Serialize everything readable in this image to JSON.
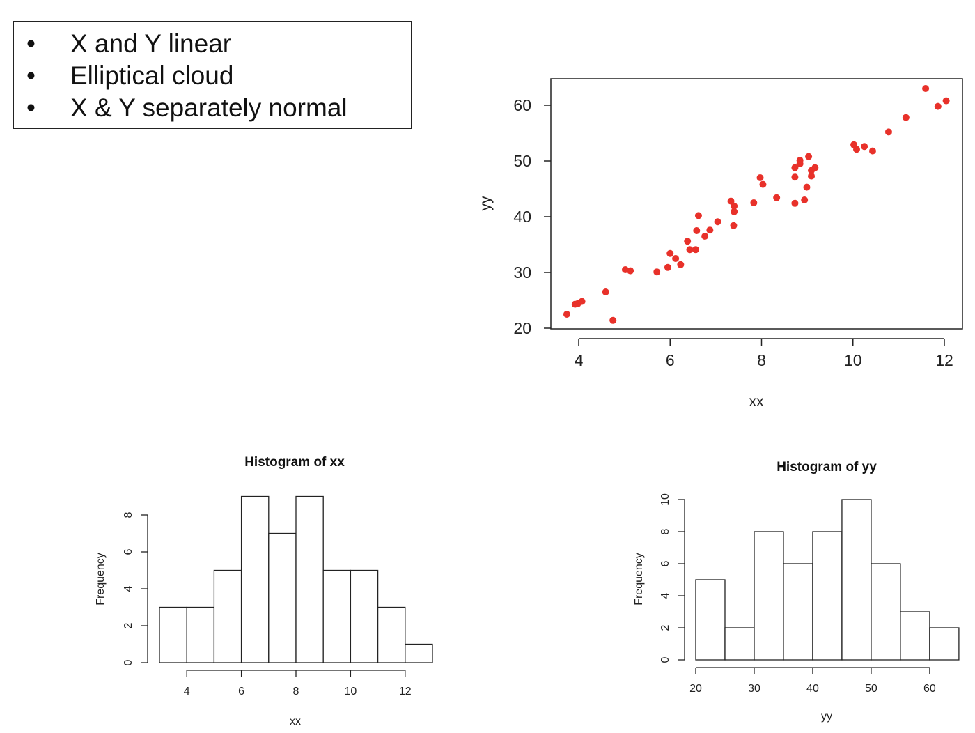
{
  "bullets": [
    "X and Y linear",
    "Elliptical cloud",
    "X & Y separately normal"
  ],
  "bullet_symbol": "•",
  "chart_data": [
    {
      "type": "scatter",
      "title": "",
      "xlabel": "xx",
      "ylabel": "yy",
      "xlim": [
        3.6,
        12.4
      ],
      "ylim": [
        20,
        64
      ],
      "xticks": [
        4,
        6,
        8,
        10,
        12
      ],
      "yticks": [
        20,
        30,
        40,
        50,
        60
      ],
      "point_color": "#e8312a",
      "grid": false,
      "points": [
        [
          3.74,
          22.5
        ],
        [
          3.92,
          24.3
        ],
        [
          3.98,
          24.4
        ],
        [
          4.07,
          24.8
        ],
        [
          4.59,
          26.5
        ],
        [
          4.75,
          21.4
        ],
        [
          5.02,
          30.5
        ],
        [
          5.13,
          30.3
        ],
        [
          5.71,
          30.1
        ],
        [
          5.95,
          30.9
        ],
        [
          6.0,
          33.4
        ],
        [
          6.12,
          32.5
        ],
        [
          6.23,
          31.4
        ],
        [
          6.38,
          35.6
        ],
        [
          6.43,
          34.1
        ],
        [
          6.56,
          34.1
        ],
        [
          6.58,
          37.5
        ],
        [
          6.62,
          40.2
        ],
        [
          6.76,
          36.5
        ],
        [
          6.87,
          37.6
        ],
        [
          7.04,
          39.1
        ],
        [
          7.33,
          42.8
        ],
        [
          7.4,
          41.9
        ],
        [
          7.4,
          40.9
        ],
        [
          7.39,
          38.4
        ],
        [
          7.83,
          42.5
        ],
        [
          7.97,
          47.0
        ],
        [
          8.03,
          45.8
        ],
        [
          8.33,
          43.4
        ],
        [
          8.73,
          48.8
        ],
        [
          8.73,
          47.1
        ],
        [
          8.73,
          42.4
        ],
        [
          8.84,
          50.1
        ],
        [
          8.84,
          49.5
        ],
        [
          8.94,
          43.0
        ],
        [
          8.99,
          45.3
        ],
        [
          9.03,
          50.8
        ],
        [
          9.09,
          47.3
        ],
        [
          9.17,
          48.8
        ],
        [
          9.09,
          48.3
        ],
        [
          10.02,
          52.9
        ],
        [
          10.08,
          52.1
        ],
        [
          10.25,
          52.6
        ],
        [
          10.43,
          51.8
        ],
        [
          10.78,
          55.2
        ],
        [
          11.16,
          57.8
        ],
        [
          11.59,
          63.0
        ],
        [
          11.86,
          59.8
        ],
        [
          12.04,
          60.8
        ]
      ]
    },
    {
      "type": "bar",
      "title": "Histogram of xx",
      "xlabel": "xx",
      "ylabel": "Frequency",
      "bin_edges": [
        3,
        4,
        5,
        6,
        7,
        8,
        9,
        10,
        11,
        12,
        13
      ],
      "values": [
        3,
        3,
        5,
        9,
        7,
        9,
        5,
        5,
        3,
        1
      ],
      "xticks": [
        4,
        6,
        8,
        10,
        12
      ],
      "yticks": [
        0,
        2,
        4,
        6,
        8
      ]
    },
    {
      "type": "bar",
      "title": "Histogram of yy",
      "xlabel": "yy",
      "ylabel": "Frequency",
      "bin_edges": [
        20,
        25,
        30,
        35,
        40,
        45,
        50,
        55,
        60,
        65
      ],
      "values": [
        5,
        2,
        8,
        6,
        8,
        10,
        6,
        3,
        2
      ],
      "xticks": [
        20,
        30,
        40,
        50,
        60
      ],
      "yticks": [
        0,
        2,
        4,
        6,
        8,
        10
      ]
    }
  ]
}
